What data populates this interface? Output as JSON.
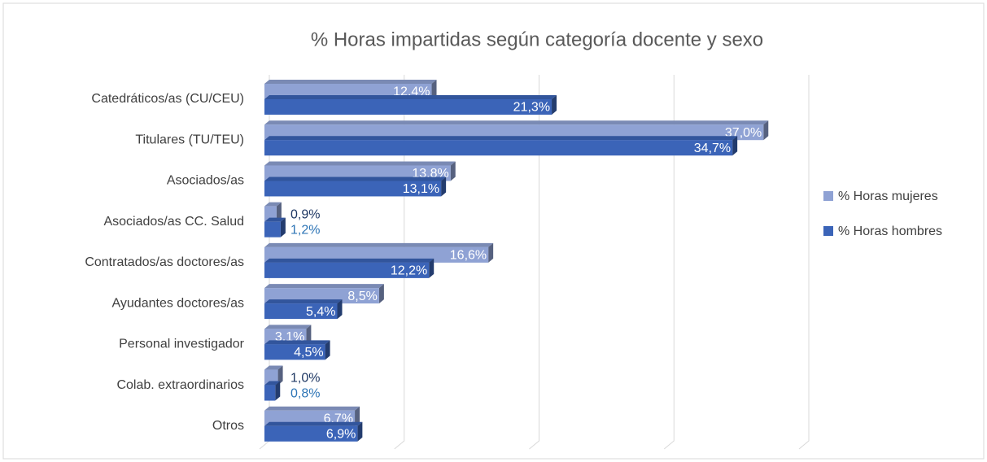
{
  "chart_data": {
    "type": "bar",
    "orientation": "horizontal",
    "title": "% Horas impartidas según categoría docente y sexo",
    "categories": [
      "Catedráticos/as (CU/CEU)",
      "Titulares (TU/TEU)",
      "Asociados/as",
      "Asociados/as CC. Salud",
      "Contratados/as doctores/as",
      "Ayudantes doctores/as",
      "Personal investigador",
      "Colab. extraordinarios",
      "Otros"
    ],
    "series": [
      {
        "name": "% Horas mujeres",
        "color": "#8fa2d4",
        "values": [
          12.4,
          37.0,
          13.8,
          0.9,
          16.6,
          8.5,
          3.1,
          1.0,
          6.7
        ],
        "value_labels": [
          "12,4%",
          "37,0%",
          "13,8%",
          "0,9%",
          "16,6%",
          "8,5%",
          "3,1%",
          "1,0%",
          "6,7%"
        ]
      },
      {
        "name": "% Horas hombres",
        "color": "#3b64b8",
        "values": [
          21.3,
          34.7,
          13.1,
          1.2,
          12.2,
          5.4,
          4.5,
          0.8,
          6.9
        ],
        "value_labels": [
          "21,3%",
          "34,7%",
          "13,1%",
          "1,2%",
          "12,2%",
          "5,4%",
          "4,5%",
          "0,8%",
          "6,9%"
        ]
      }
    ],
    "xlim": [
      0,
      40
    ],
    "xticks": [
      0,
      10,
      20,
      30,
      40
    ],
    "grid": true,
    "legend": "right"
  }
}
